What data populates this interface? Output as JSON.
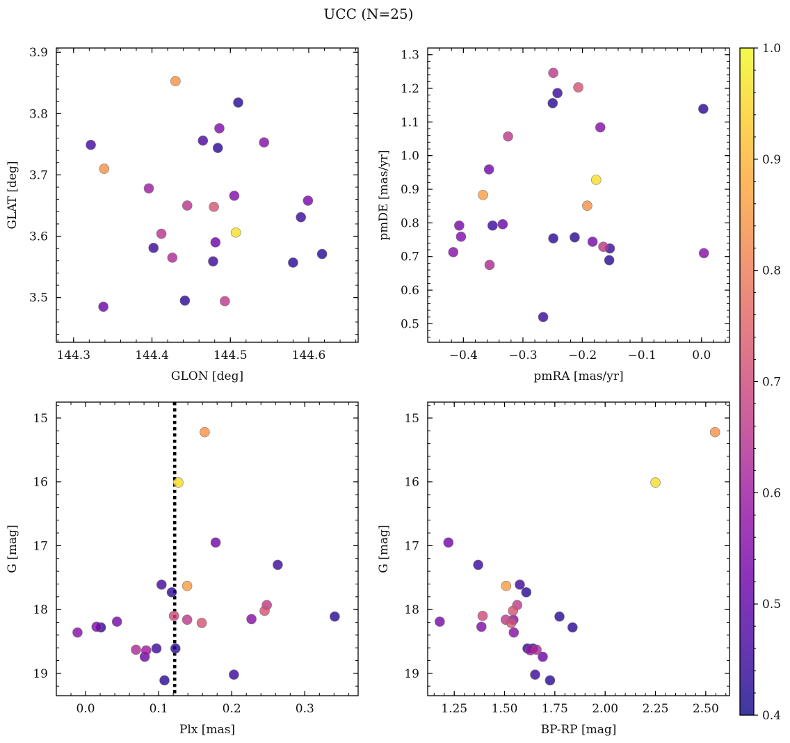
{
  "figure_title": "UCC (N=25)",
  "colorbar": {
    "range": [
      0.4,
      1.0
    ],
    "ticks": [
      0.4,
      0.5,
      0.6,
      0.7,
      0.8,
      0.9,
      1.0
    ],
    "tick_labels": [
      "0.4",
      "0.5",
      "0.6",
      "0.7",
      "0.8",
      "0.9",
      "1.0"
    ],
    "colormap": "plasma"
  },
  "chart_data": [
    {
      "type": "scatter",
      "name": "galactic-coordinates",
      "xlabel": "GLON [deg]",
      "ylabel": "GLAT [deg]",
      "xlim": [
        144.278,
        144.663
      ],
      "ylim": [
        3.427,
        3.907
      ],
      "xticks": [
        144.3,
        144.4,
        144.5,
        144.6
      ],
      "xtick_labels": [
        "144.3",
        "144.4",
        "144.5",
        "144.6"
      ],
      "yticks": [
        3.5,
        3.6,
        3.7,
        3.8,
        3.9
      ],
      "ytick_labels": [
        "3.5",
        "3.6",
        "3.7",
        "3.8",
        "3.9"
      ],
      "y_inverted": false,
      "points": [
        {
          "x": 144.43,
          "y": 3.853,
          "c": 0.84
        },
        {
          "x": 144.51,
          "y": 3.818,
          "c": 0.43
        },
        {
          "x": 144.486,
          "y": 3.776,
          "c": 0.55
        },
        {
          "x": 144.465,
          "y": 3.756,
          "c": 0.47
        },
        {
          "x": 144.322,
          "y": 3.749,
          "c": 0.46
        },
        {
          "x": 144.543,
          "y": 3.753,
          "c": 0.56
        },
        {
          "x": 144.484,
          "y": 3.744,
          "c": 0.43
        },
        {
          "x": 144.339,
          "y": 3.71,
          "c": 0.84
        },
        {
          "x": 144.396,
          "y": 3.678,
          "c": 0.6
        },
        {
          "x": 144.505,
          "y": 3.666,
          "c": 0.55
        },
        {
          "x": 144.599,
          "y": 3.658,
          "c": 0.54
        },
        {
          "x": 144.445,
          "y": 3.65,
          "c": 0.65
        },
        {
          "x": 144.479,
          "y": 3.648,
          "c": 0.72
        },
        {
          "x": 144.59,
          "y": 3.631,
          "c": 0.45
        },
        {
          "x": 144.507,
          "y": 3.606,
          "c": 0.96
        },
        {
          "x": 144.412,
          "y": 3.604,
          "c": 0.65
        },
        {
          "x": 144.481,
          "y": 3.59,
          "c": 0.52
        },
        {
          "x": 144.402,
          "y": 3.581,
          "c": 0.45
        },
        {
          "x": 144.617,
          "y": 3.571,
          "c": 0.43
        },
        {
          "x": 144.426,
          "y": 3.565,
          "c": 0.63
        },
        {
          "x": 144.478,
          "y": 3.559,
          "c": 0.45
        },
        {
          "x": 144.58,
          "y": 3.557,
          "c": 0.43
        },
        {
          "x": 144.442,
          "y": 3.495,
          "c": 0.43
        },
        {
          "x": 144.493,
          "y": 3.494,
          "c": 0.66
        },
        {
          "x": 144.338,
          "y": 3.485,
          "c": 0.52
        }
      ]
    },
    {
      "type": "scatter",
      "name": "proper-motions",
      "xlabel": "pmRA [mas/yr]",
      "ylabel": "pmDE [mas/yr]",
      "xlim": [
        -0.46,
        0.047
      ],
      "ylim": [
        0.445,
        1.32
      ],
      "xticks": [
        -0.4,
        -0.3,
        -0.2,
        -0.1,
        0.0
      ],
      "xtick_labels": [
        "−0.4",
        "−0.3",
        "−0.2",
        "−0.1",
        "0.0"
      ],
      "yticks": [
        0.5,
        0.6,
        0.7,
        0.8,
        0.9,
        1.0,
        1.1,
        1.2,
        1.3
      ],
      "ytick_labels": [
        "0.5",
        "0.6",
        "0.7",
        "0.8",
        "0.9",
        "1.0",
        "1.1",
        "1.2",
        "1.3"
      ],
      "y_inverted": false,
      "points": [
        {
          "x": -0.249,
          "y": 1.246,
          "c": 0.66
        },
        {
          "x": -0.207,
          "y": 1.203,
          "c": 0.72
        },
        {
          "x": -0.242,
          "y": 1.186,
          "c": 0.45
        },
        {
          "x": -0.25,
          "y": 1.156,
          "c": 0.43
        },
        {
          "x": 0.003,
          "y": 1.139,
          "c": 0.43
        },
        {
          "x": -0.17,
          "y": 1.084,
          "c": 0.56
        },
        {
          "x": -0.325,
          "y": 1.057,
          "c": 0.66
        },
        {
          "x": -0.357,
          "y": 0.959,
          "c": 0.53
        },
        {
          "x": -0.177,
          "y": 0.928,
          "c": 0.96
        },
        {
          "x": -0.367,
          "y": 0.883,
          "c": 0.86
        },
        {
          "x": -0.192,
          "y": 0.851,
          "c": 0.84
        },
        {
          "x": -0.334,
          "y": 0.796,
          "c": 0.52
        },
        {
          "x": -0.407,
          "y": 0.792,
          "c": 0.54
        },
        {
          "x": -0.351,
          "y": 0.792,
          "c": 0.45
        },
        {
          "x": -0.404,
          "y": 0.759,
          "c": 0.55
        },
        {
          "x": -0.213,
          "y": 0.757,
          "c": 0.43
        },
        {
          "x": -0.249,
          "y": 0.754,
          "c": 0.43
        },
        {
          "x": -0.183,
          "y": 0.744,
          "c": 0.53
        },
        {
          "x": -0.165,
          "y": 0.729,
          "c": 0.66
        },
        {
          "x": -0.154,
          "y": 0.724,
          "c": 0.45
        },
        {
          "x": -0.417,
          "y": 0.713,
          "c": 0.56
        },
        {
          "x": 0.004,
          "y": 0.71,
          "c": 0.56
        },
        {
          "x": -0.155,
          "y": 0.689,
          "c": 0.43
        },
        {
          "x": -0.356,
          "y": 0.675,
          "c": 0.63
        },
        {
          "x": -0.266,
          "y": 0.52,
          "c": 0.45
        }
      ]
    },
    {
      "type": "scatter",
      "name": "parallax-magnitude",
      "xlabel": "Plx [mas]",
      "ylabel": "G [mag]",
      "xlim": [
        -0.04,
        0.373
      ],
      "ylim": [
        19.35,
        14.75
      ],
      "xticks": [
        0.0,
        0.1,
        0.2,
        0.3
      ],
      "xtick_labels": [
        "0.0",
        "0.1",
        "0.2",
        "0.3"
      ],
      "yticks": [
        15,
        16,
        17,
        18,
        19
      ],
      "ytick_labels": [
        "15",
        "16",
        "17",
        "18",
        "19"
      ],
      "y_inverted": true,
      "vline": 0.122,
      "points": [
        {
          "x": 0.163,
          "y": 15.22,
          "c": 0.84
        },
        {
          "x": 0.127,
          "y": 16.01,
          "c": 0.96
        },
        {
          "x": 0.178,
          "y": 16.95,
          "c": 0.53
        },
        {
          "x": 0.263,
          "y": 17.3,
          "c": 0.45
        },
        {
          "x": 0.104,
          "y": 17.61,
          "c": 0.46
        },
        {
          "x": 0.139,
          "y": 17.63,
          "c": 0.86
        },
        {
          "x": 0.118,
          "y": 17.73,
          "c": 0.43
        },
        {
          "x": 0.248,
          "y": 17.93,
          "c": 0.66
        },
        {
          "x": 0.245,
          "y": 18.02,
          "c": 0.72
        },
        {
          "x": 0.121,
          "y": 18.1,
          "c": 0.7
        },
        {
          "x": 0.341,
          "y": 18.11,
          "c": 0.43
        },
        {
          "x": 0.139,
          "y": 18.16,
          "c": 0.66
        },
        {
          "x": 0.227,
          "y": 18.15,
          "c": 0.56
        },
        {
          "x": 0.043,
          "y": 18.19,
          "c": 0.54
        },
        {
          "x": 0.159,
          "y": 18.21,
          "c": 0.72
        },
        {
          "x": 0.015,
          "y": 18.27,
          "c": 0.55
        },
        {
          "x": 0.021,
          "y": 18.28,
          "c": 0.43
        },
        {
          "x": -0.011,
          "y": 18.36,
          "c": 0.56
        },
        {
          "x": 0.123,
          "y": 18.61,
          "c": 0.43
        },
        {
          "x": 0.097,
          "y": 18.61,
          "c": 0.45
        },
        {
          "x": 0.069,
          "y": 18.63,
          "c": 0.63
        },
        {
          "x": 0.083,
          "y": 18.64,
          "c": 0.6
        },
        {
          "x": 0.081,
          "y": 18.74,
          "c": 0.52
        },
        {
          "x": 0.203,
          "y": 19.02,
          "c": 0.45
        },
        {
          "x": 0.108,
          "y": 19.11,
          "c": 0.43
        }
      ]
    },
    {
      "type": "scatter",
      "name": "color-magnitude",
      "xlabel": "BP-RP [mag]",
      "ylabel": "G [mag]",
      "xlim": [
        1.118,
        2.618
      ],
      "ylim": [
        19.35,
        14.75
      ],
      "xticks": [
        1.25,
        1.5,
        1.75,
        2.0,
        2.25,
        2.5
      ],
      "xtick_labels": [
        "1.25",
        "1.50",
        "1.75",
        "2.00",
        "2.25",
        "2.50"
      ],
      "yticks": [
        15,
        16,
        17,
        18,
        19
      ],
      "ytick_labels": [
        "15",
        "16",
        "17",
        "18",
        "19"
      ],
      "y_inverted": true,
      "points": [
        {
          "x": 2.546,
          "y": 15.22,
          "c": 0.84
        },
        {
          "x": 2.25,
          "y": 16.01,
          "c": 0.96
        },
        {
          "x": 1.221,
          "y": 16.95,
          "c": 0.53
        },
        {
          "x": 1.369,
          "y": 17.3,
          "c": 0.45
        },
        {
          "x": 1.576,
          "y": 17.61,
          "c": 0.46
        },
        {
          "x": 1.508,
          "y": 17.63,
          "c": 0.86
        },
        {
          "x": 1.608,
          "y": 17.73,
          "c": 0.43
        },
        {
          "x": 1.563,
          "y": 17.93,
          "c": 0.66
        },
        {
          "x": 1.542,
          "y": 18.02,
          "c": 0.72
        },
        {
          "x": 1.391,
          "y": 18.1,
          "c": 0.7
        },
        {
          "x": 1.773,
          "y": 18.11,
          "c": 0.43
        },
        {
          "x": 1.544,
          "y": 18.16,
          "c": 0.56
        },
        {
          "x": 1.506,
          "y": 18.16,
          "c": 0.66
        },
        {
          "x": 1.178,
          "y": 18.19,
          "c": 0.54
        },
        {
          "x": 1.533,
          "y": 18.21,
          "c": 0.72
        },
        {
          "x": 1.385,
          "y": 18.27,
          "c": 0.55
        },
        {
          "x": 1.838,
          "y": 18.28,
          "c": 0.43
        },
        {
          "x": 1.546,
          "y": 18.36,
          "c": 0.56
        },
        {
          "x": 1.614,
          "y": 18.61,
          "c": 0.43
        },
        {
          "x": 1.641,
          "y": 18.61,
          "c": 0.45
        },
        {
          "x": 1.659,
          "y": 18.63,
          "c": 0.63
        },
        {
          "x": 1.628,
          "y": 18.64,
          "c": 0.6
        },
        {
          "x": 1.69,
          "y": 18.74,
          "c": 0.52
        },
        {
          "x": 1.652,
          "y": 19.02,
          "c": 0.45
        },
        {
          "x": 1.726,
          "y": 19.11,
          "c": 0.43
        }
      ]
    }
  ]
}
